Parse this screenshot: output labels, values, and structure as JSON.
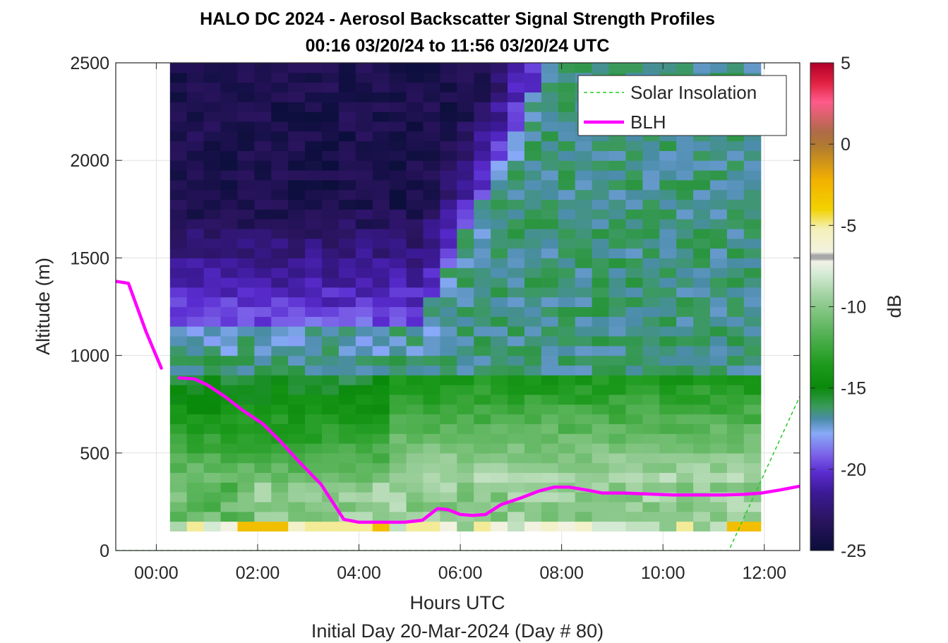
{
  "chart_data": {
    "type": "heatmap",
    "title": "HALO DC 2024 - Aerosol Backscatter Signal Strength Profiles",
    "subtitle": "00:16 03/20/24 to 11:56 03/20/24  UTC",
    "xlabel": "Hours UTC",
    "xlabel2": "Initial Day 20-Mar-2024 (Day # 80)",
    "ylabel": "Altitude (m)",
    "colorbar_label": "dB",
    "xlim_hours": [
      -0.8,
      12.7
    ],
    "ylim": [
      0,
      2500
    ],
    "x_tick_labels": [
      "00:00",
      "02:00",
      "04:00",
      "06:00",
      "08:00",
      "10:00",
      "12:00"
    ],
    "x_tick_values": [
      0,
      2,
      4,
      6,
      8,
      10,
      12
    ],
    "y_ticks": [
      0,
      500,
      1000,
      1500,
      2000,
      2500
    ],
    "colorbar_ticks": [
      5,
      0,
      -5,
      -10,
      -15,
      -20,
      -25
    ],
    "clim": [
      -25,
      5
    ],
    "grid": true,
    "legend_position": "top-right",
    "data_time_range_hours": [
      0.27,
      11.93
    ],
    "series": [
      {
        "name": "Solar Insolation",
        "style": "dashed",
        "color": "#22cc22",
        "x": [
          -0.8,
          11.3,
          12.7
        ],
        "y": [
          0,
          0,
          790
        ]
      },
      {
        "name": "BLH",
        "style": "solid",
        "color": "#ff00ff",
        "segments": [
          {
            "x": [
              -0.8,
              -0.55,
              -0.2,
              0.1
            ],
            "y": [
              1380,
              1370,
              1120,
              935
            ]
          },
          {
            "x": [
              0.45,
              0.75,
              1.0,
              1.35,
              1.7,
              2.1,
              2.45,
              2.8,
              3.25,
              3.5,
              3.7,
              4.0,
              4.4,
              4.9,
              5.25,
              5.55,
              5.75,
              6.0,
              6.25,
              6.5,
              6.8,
              7.2,
              7.55,
              7.85,
              8.15,
              8.5,
              8.8,
              9.2,
              9.7,
              10.2,
              10.7,
              11.2,
              11.6,
              11.95,
              12.3,
              12.7
            ],
            "y": [
              885,
              880,
              850,
              790,
              720,
              650,
              560,
              460,
              340,
              240,
              160,
              145,
              145,
              145,
              155,
              215,
              210,
              185,
              180,
              185,
              235,
              270,
              305,
              325,
              325,
              310,
              295,
              295,
              290,
              285,
              285,
              285,
              288,
              295,
              310,
              330
            ]
          }
        ]
      }
    ],
    "colors": {
      "blh": "#ff00ff",
      "solar": "#22cc22",
      "colormap": [
        "#0a0e3a",
        "#2a145e",
        "#3c1a96",
        "#5a2cd0",
        "#7a60e8",
        "#88aaf8",
        "#4a8ca8",
        "#3a9a5a",
        "#0a8a0a",
        "#1c9a1c",
        "#5ab45a",
        "#9ed09e",
        "#d8ecd8",
        "#f2f2e6",
        "#aaaaaa",
        "#f4f0b8",
        "#f2d200",
        "#f2b000",
        "#b07a30",
        "#b06a4a",
        "#ff5a8a",
        "#e02040",
        "#b00028"
      ]
    }
  }
}
